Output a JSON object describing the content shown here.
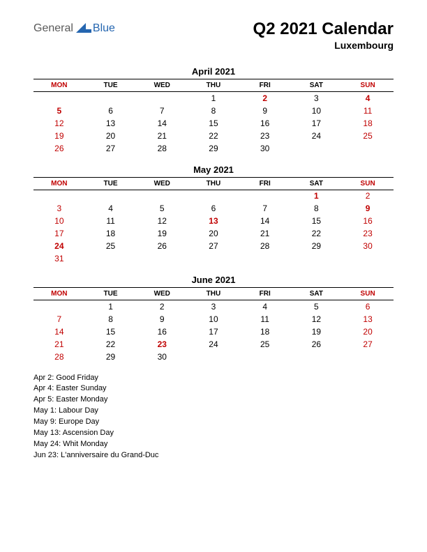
{
  "logo": {
    "general": "General",
    "blue": "Blue",
    "arrow_fill": "#2566b0"
  },
  "header": {
    "title": "Q2 2021 Calendar",
    "subtitle": "Luxembourg"
  },
  "colors": {
    "text": "#000000",
    "holiday": "#c00000",
    "background": "#ffffff",
    "rule": "#000000"
  },
  "weekdays": [
    {
      "label": "MON",
      "red": true
    },
    {
      "label": "TUE",
      "red": false
    },
    {
      "label": "WED",
      "red": false
    },
    {
      "label": "THU",
      "red": false
    },
    {
      "label": "FRI",
      "red": false
    },
    {
      "label": "SAT",
      "red": false
    },
    {
      "label": "SUN",
      "red": true
    }
  ],
  "months": [
    {
      "title": "April 2021",
      "rows": [
        [
          {
            "d": ""
          },
          {
            "d": ""
          },
          {
            "d": ""
          },
          {
            "d": "1"
          },
          {
            "d": "2",
            "h": true
          },
          {
            "d": "3"
          },
          {
            "d": "4",
            "h": true
          }
        ],
        [
          {
            "d": "5",
            "h": true
          },
          {
            "d": "6"
          },
          {
            "d": "7"
          },
          {
            "d": "8"
          },
          {
            "d": "9"
          },
          {
            "d": "10"
          },
          {
            "d": "11",
            "s": true
          }
        ],
        [
          {
            "d": "12",
            "s": true
          },
          {
            "d": "13"
          },
          {
            "d": "14"
          },
          {
            "d": "15"
          },
          {
            "d": "16"
          },
          {
            "d": "17"
          },
          {
            "d": "18",
            "s": true
          }
        ],
        [
          {
            "d": "19",
            "s": true
          },
          {
            "d": "20"
          },
          {
            "d": "21"
          },
          {
            "d": "22"
          },
          {
            "d": "23"
          },
          {
            "d": "24"
          },
          {
            "d": "25",
            "s": true
          }
        ],
        [
          {
            "d": "26",
            "s": true
          },
          {
            "d": "27"
          },
          {
            "d": "28"
          },
          {
            "d": "29"
          },
          {
            "d": "30"
          },
          {
            "d": ""
          },
          {
            "d": ""
          }
        ]
      ]
    },
    {
      "title": "May 2021",
      "rows": [
        [
          {
            "d": ""
          },
          {
            "d": ""
          },
          {
            "d": ""
          },
          {
            "d": ""
          },
          {
            "d": ""
          },
          {
            "d": "1",
            "h": true
          },
          {
            "d": "2",
            "s": true
          }
        ],
        [
          {
            "d": "3",
            "s": true
          },
          {
            "d": "4"
          },
          {
            "d": "5"
          },
          {
            "d": "6"
          },
          {
            "d": "7"
          },
          {
            "d": "8"
          },
          {
            "d": "9",
            "h": true
          }
        ],
        [
          {
            "d": "10",
            "s": true
          },
          {
            "d": "11"
          },
          {
            "d": "12"
          },
          {
            "d": "13",
            "h": true
          },
          {
            "d": "14"
          },
          {
            "d": "15"
          },
          {
            "d": "16",
            "s": true
          }
        ],
        [
          {
            "d": "17",
            "s": true
          },
          {
            "d": "18"
          },
          {
            "d": "19"
          },
          {
            "d": "20"
          },
          {
            "d": "21"
          },
          {
            "d": "22"
          },
          {
            "d": "23",
            "s": true
          }
        ],
        [
          {
            "d": "24",
            "h": true
          },
          {
            "d": "25"
          },
          {
            "d": "26"
          },
          {
            "d": "27"
          },
          {
            "d": "28"
          },
          {
            "d": "29"
          },
          {
            "d": "30",
            "s": true
          }
        ],
        [
          {
            "d": "31",
            "s": true
          },
          {
            "d": ""
          },
          {
            "d": ""
          },
          {
            "d": ""
          },
          {
            "d": ""
          },
          {
            "d": ""
          },
          {
            "d": ""
          }
        ]
      ]
    },
    {
      "title": "June 2021",
      "rows": [
        [
          {
            "d": ""
          },
          {
            "d": "1"
          },
          {
            "d": "2"
          },
          {
            "d": "3"
          },
          {
            "d": "4"
          },
          {
            "d": "5"
          },
          {
            "d": "6",
            "s": true
          }
        ],
        [
          {
            "d": "7",
            "s": true
          },
          {
            "d": "8"
          },
          {
            "d": "9"
          },
          {
            "d": "10"
          },
          {
            "d": "11"
          },
          {
            "d": "12"
          },
          {
            "d": "13",
            "s": true
          }
        ],
        [
          {
            "d": "14",
            "s": true
          },
          {
            "d": "15"
          },
          {
            "d": "16"
          },
          {
            "d": "17"
          },
          {
            "d": "18"
          },
          {
            "d": "19"
          },
          {
            "d": "20",
            "s": true
          }
        ],
        [
          {
            "d": "21",
            "s": true
          },
          {
            "d": "22"
          },
          {
            "d": "23",
            "h": true
          },
          {
            "d": "24"
          },
          {
            "d": "25"
          },
          {
            "d": "26"
          },
          {
            "d": "27",
            "s": true
          }
        ],
        [
          {
            "d": "28",
            "s": true
          },
          {
            "d": "29"
          },
          {
            "d": "30"
          },
          {
            "d": ""
          },
          {
            "d": ""
          },
          {
            "d": ""
          },
          {
            "d": ""
          }
        ]
      ]
    }
  ],
  "holidays": [
    "Apr 2: Good Friday",
    "Apr 4: Easter Sunday",
    "Apr 5: Easter Monday",
    "May 1: Labour Day",
    "May 9: Europe Day",
    "May 13: Ascension Day",
    "May 24: Whit Monday",
    "Jun 23: L'anniversaire du Grand-Duc"
  ]
}
